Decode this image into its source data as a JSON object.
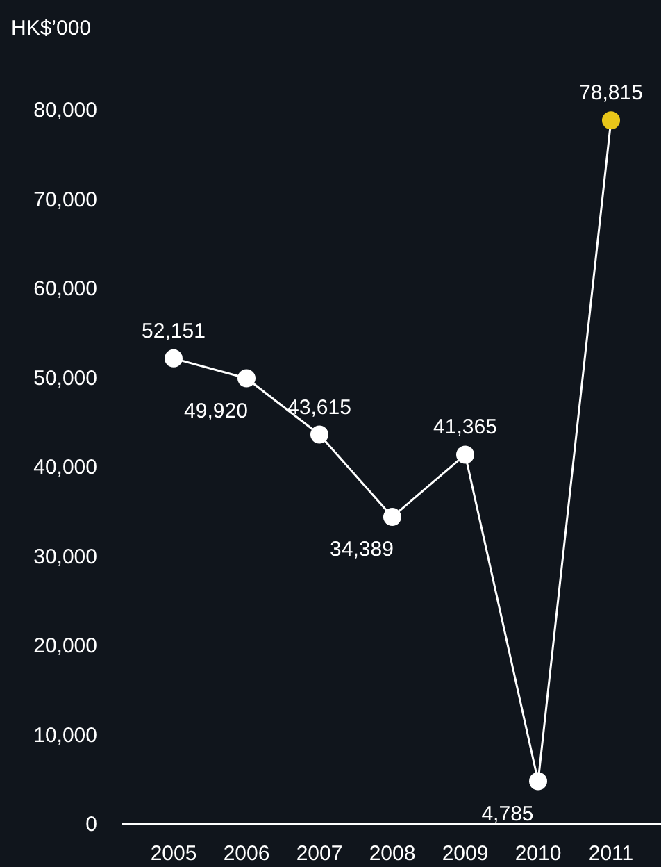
{
  "chart_data": {
    "type": "line",
    "ylabel": "HK$’000",
    "categories": [
      "2005",
      "2006",
      "2007",
      "2008",
      "2009",
      "2010",
      "2011"
    ],
    "series": [
      {
        "color": "#ffffff",
        "colors": [
          "#ffffff",
          "#ffffff",
          "#ffffff",
          "#ffffff",
          "#ffffff",
          "#ffffff",
          "#e8c619"
        ],
        "values": [
          52151,
          49920,
          43615,
          34389,
          41365,
          4785,
          78815
        ],
        "value_labels": [
          "52,151",
          "49,920",
          "43,615",
          "34,389",
          "41,365",
          "4,785",
          "78,815"
        ]
      }
    ],
    "ylim": [
      0,
      80000
    ],
    "yticks": [
      {
        "value": 0,
        "label": "0"
      },
      {
        "value": 10000,
        "label": "10,000"
      },
      {
        "value": 20000,
        "label": "20,000"
      },
      {
        "value": 30000,
        "label": "30,000"
      },
      {
        "value": 40000,
        "label": "40,000"
      },
      {
        "value": 50000,
        "label": "50,000"
      },
      {
        "value": 60000,
        "label": "60,000"
      },
      {
        "value": 70000,
        "label": "70,000"
      },
      {
        "value": 80000,
        "label": "80,000"
      }
    ],
    "grid": false,
    "marker": "circle",
    "line_style": "solid"
  }
}
